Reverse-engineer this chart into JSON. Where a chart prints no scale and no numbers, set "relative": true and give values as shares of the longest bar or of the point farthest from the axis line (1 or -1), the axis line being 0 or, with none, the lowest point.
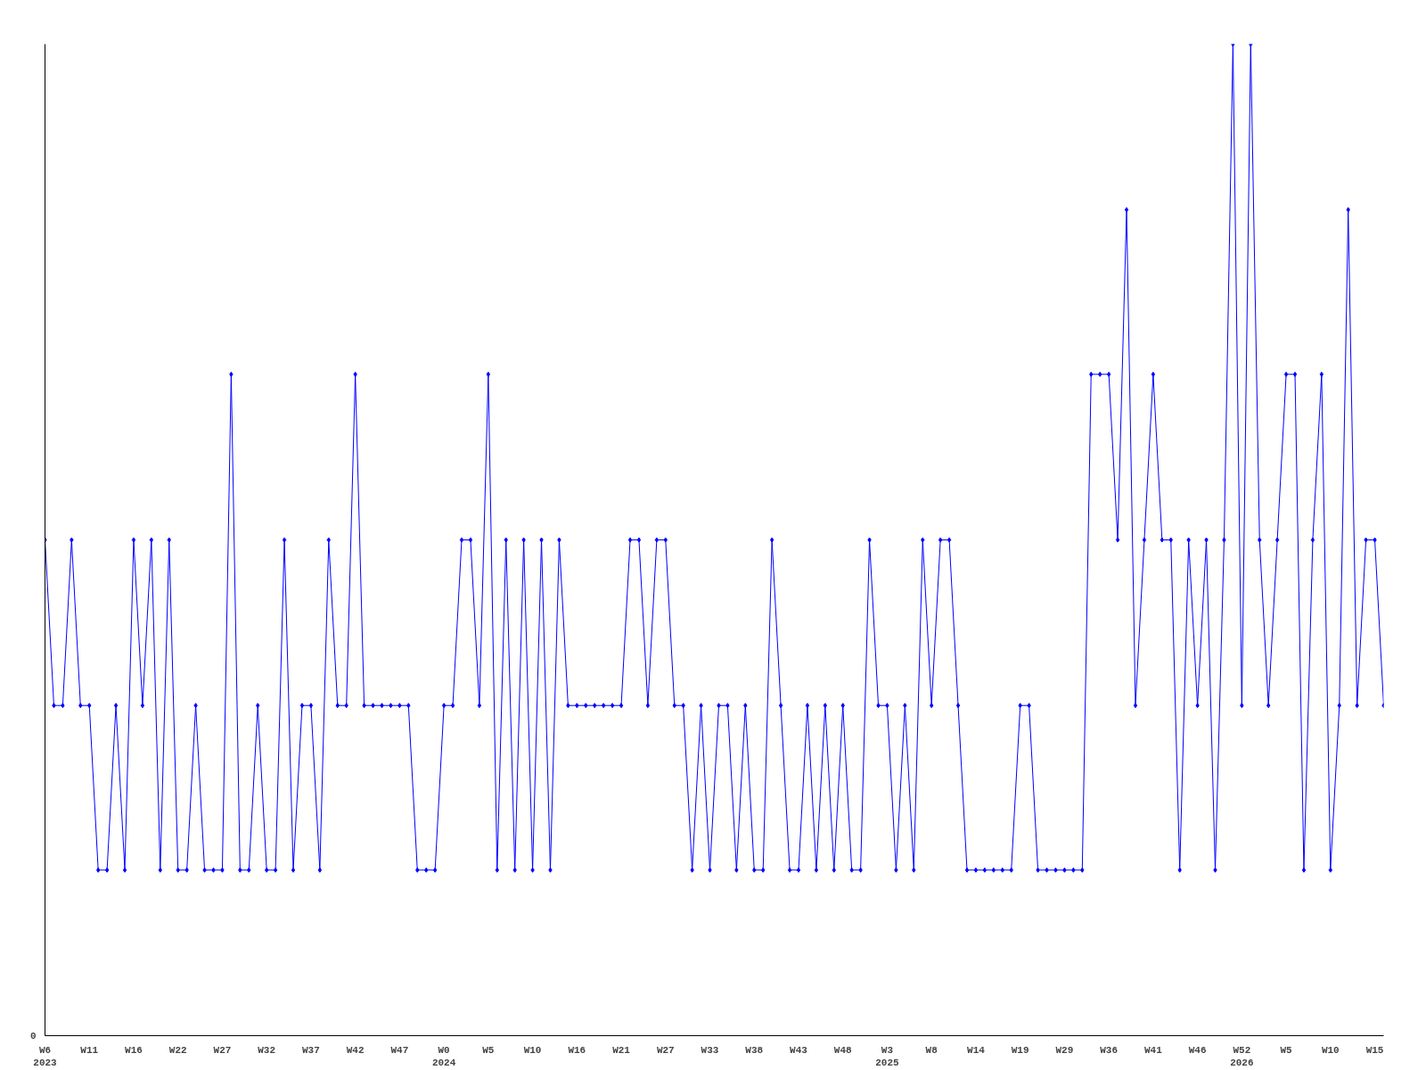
{
  "chart_data": {
    "type": "line",
    "relative": true,
    "grid": false,
    "marker": "diamond",
    "line_style": "solid",
    "annotations": [
      "0"
    ],
    "categories": [
      "W6\n2023",
      null,
      null,
      null,
      null,
      "W11",
      null,
      null,
      null,
      null,
      "W16",
      null,
      null,
      null,
      null,
      "W22",
      null,
      null,
      null,
      null,
      "W27",
      null,
      null,
      null,
      null,
      "W32",
      null,
      null,
      null,
      null,
      "W37",
      null,
      null,
      null,
      null,
      "W42",
      null,
      null,
      null,
      null,
      "W47",
      null,
      null,
      null,
      null,
      "W0\n2024",
      null,
      null,
      null,
      null,
      "W5",
      null,
      null,
      null,
      null,
      "W10",
      null,
      null,
      null,
      null,
      "W16",
      null,
      null,
      null,
      null,
      "W21",
      null,
      null,
      null,
      null,
      "W27",
      null,
      null,
      null,
      null,
      "W33",
      null,
      null,
      null,
      null,
      "W38",
      null,
      null,
      null,
      null,
      "W43",
      null,
      null,
      null,
      null,
      "W48",
      null,
      null,
      null,
      null,
      "W3\n2025",
      null,
      null,
      null,
      null,
      "W8",
      null,
      null,
      null,
      null,
      "W14",
      null,
      null,
      null,
      null,
      "W19",
      null,
      null,
      null,
      null,
      "W29",
      null,
      null,
      null,
      null,
      "W36",
      null,
      null,
      null,
      null,
      "W41",
      null,
      null,
      null,
      null,
      "W46",
      null,
      null,
      null,
      null,
      "W52\n2026",
      null,
      null,
      null,
      null,
      "W5",
      null,
      null,
      null,
      null,
      "W10",
      null,
      null,
      null,
      null,
      "W15",
      null
    ],
    "series": [
      {
        "color": "#0000ff",
        "values": [
          0.5,
          0.333,
          0.333,
          0.5,
          0.333,
          0.333,
          0.167,
          0.167,
          0.333,
          0.167,
          0.5,
          0.333,
          0.5,
          0.167,
          0.5,
          0.167,
          0.167,
          0.333,
          0.167,
          0.167,
          0.167,
          0.667,
          0.167,
          0.167,
          0.333,
          0.167,
          0.167,
          0.5,
          0.167,
          0.333,
          0.333,
          0.167,
          0.5,
          0.333,
          0.333,
          0.667,
          0.333,
          0.333,
          0.333,
          0.333,
          0.333,
          0.333,
          0.167,
          0.167,
          0.167,
          0.333,
          0.333,
          0.5,
          0.5,
          0.333,
          0.667,
          0.167,
          0.5,
          0.167,
          0.5,
          0.167,
          0.5,
          0.167,
          0.5,
          0.333,
          0.333,
          0.333,
          0.333,
          0.333,
          0.333,
          0.333,
          0.5,
          0.5,
          0.333,
          0.5,
          0.5,
          0.333,
          0.333,
          0.167,
          0.333,
          0.167,
          0.333,
          0.333,
          0.167,
          0.333,
          0.167,
          0.167,
          0.5,
          0.333,
          0.167,
          0.167,
          0.333,
          0.167,
          0.333,
          0.167,
          0.333,
          0.167,
          0.167,
          0.5,
          0.333,
          0.333,
          0.167,
          0.333,
          0.167,
          0.5,
          0.333,
          0.5,
          0.5,
          0.333,
          0.167,
          0.167,
          0.167,
          0.167,
          0.167,
          0.167,
          0.333,
          0.333,
          0.167,
          0.167,
          0.167,
          0.167,
          0.167,
          0.167,
          0.667,
          0.667,
          0.667,
          0.5,
          0.833,
          0.333,
          0.5,
          0.667,
          0.5,
          0.5,
          0.167,
          0.5,
          0.333,
          0.5,
          0.167,
          0.5,
          1,
          0.333,
          1,
          0.5,
          0.333,
          0.5,
          0.667,
          0.667,
          0.167,
          0.5,
          0.667,
          0.167,
          0.333,
          0.833,
          0.333,
          0.5,
          0.5,
          0.333
        ]
      }
    ]
  }
}
